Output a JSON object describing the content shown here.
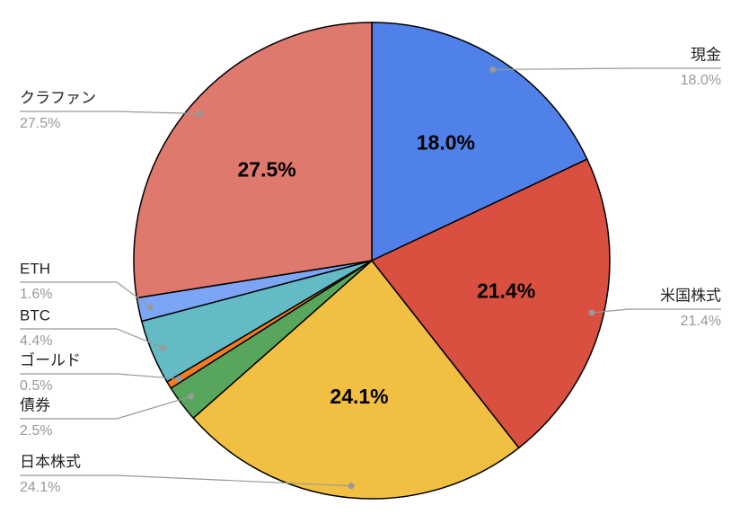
{
  "chart_data": {
    "type": "pie",
    "categories": [
      "現金",
      "米国株式",
      "日本株式",
      "債券",
      "ゴールド",
      "BTC",
      "ETH",
      "クラファン"
    ],
    "values": [
      18.0,
      21.4,
      24.1,
      2.5,
      0.5,
      4.4,
      1.6,
      27.5
    ],
    "value_labels": [
      "18.0%",
      "21.4%",
      "24.1%",
      "2.5%",
      "0.5%",
      "4.4%",
      "1.6%",
      "27.5%"
    ],
    "colors": [
      "#4f81e9",
      "#d94f40",
      "#f1bf42",
      "#58a65c",
      "#f27c21",
      "#64bbc6",
      "#7ca6f5",
      "#e0796d"
    ]
  }
}
